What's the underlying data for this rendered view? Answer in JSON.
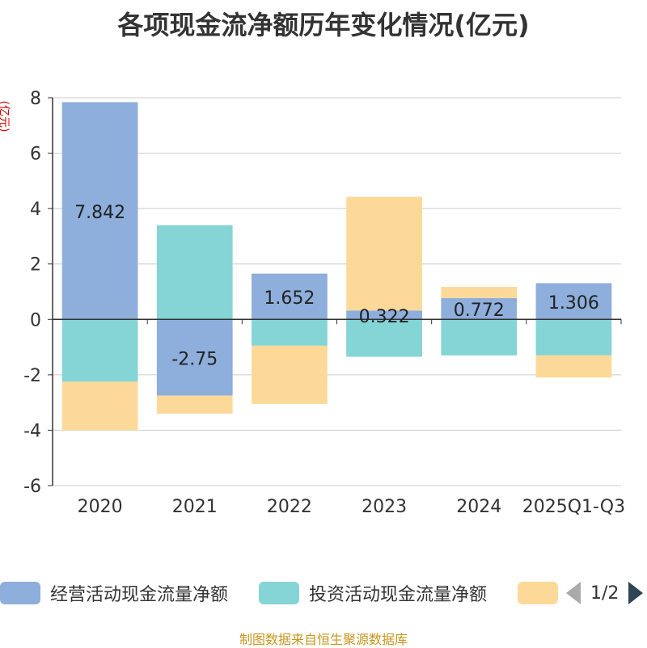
{
  "title": "各项现金流净额历年变化情况(亿元)",
  "unit_label": "(亿元)",
  "source": "制图数据来自恒生聚源数据库",
  "legend": {
    "items": [
      {
        "label": "经营活动现金流量净额",
        "color": "#8eaedb"
      },
      {
        "label": "投资活动现金流量净额",
        "color": "#85d4d6"
      },
      {
        "label": "",
        "color": "#fdd999"
      }
    ],
    "page": "1/2"
  },
  "chart_data": {
    "type": "bar",
    "stacked": true,
    "title": "各项现金流净额历年变化情况(亿元)",
    "ylabel": "(亿元)",
    "categories": [
      "2020",
      "2021",
      "2022",
      "2023",
      "2024",
      "2025Q1-Q3"
    ],
    "ylim": [
      -6,
      8
    ],
    "yticks": [
      -6,
      -4,
      -2,
      0,
      2,
      4,
      6,
      8
    ],
    "series": [
      {
        "name": "经营活动现金流量净额",
        "color": "#8eaedb",
        "values": [
          7.842,
          -2.75,
          1.652,
          0.322,
          0.772,
          1.306
        ],
        "labels": [
          "7.842",
          "-2.75",
          "1.652",
          "0.322",
          "0.772",
          "1.306"
        ]
      },
      {
        "name": "投资活动现金流量净额",
        "color": "#85d4d6",
        "values": [
          -2.25,
          3.4,
          -0.95,
          -1.35,
          -1.3,
          -1.3
        ]
      },
      {
        "name": "",
        "color": "#fdd999",
        "values": [
          -1.75,
          -0.65,
          -2.1,
          4.1,
          0.4,
          -0.8
        ]
      }
    ]
  }
}
